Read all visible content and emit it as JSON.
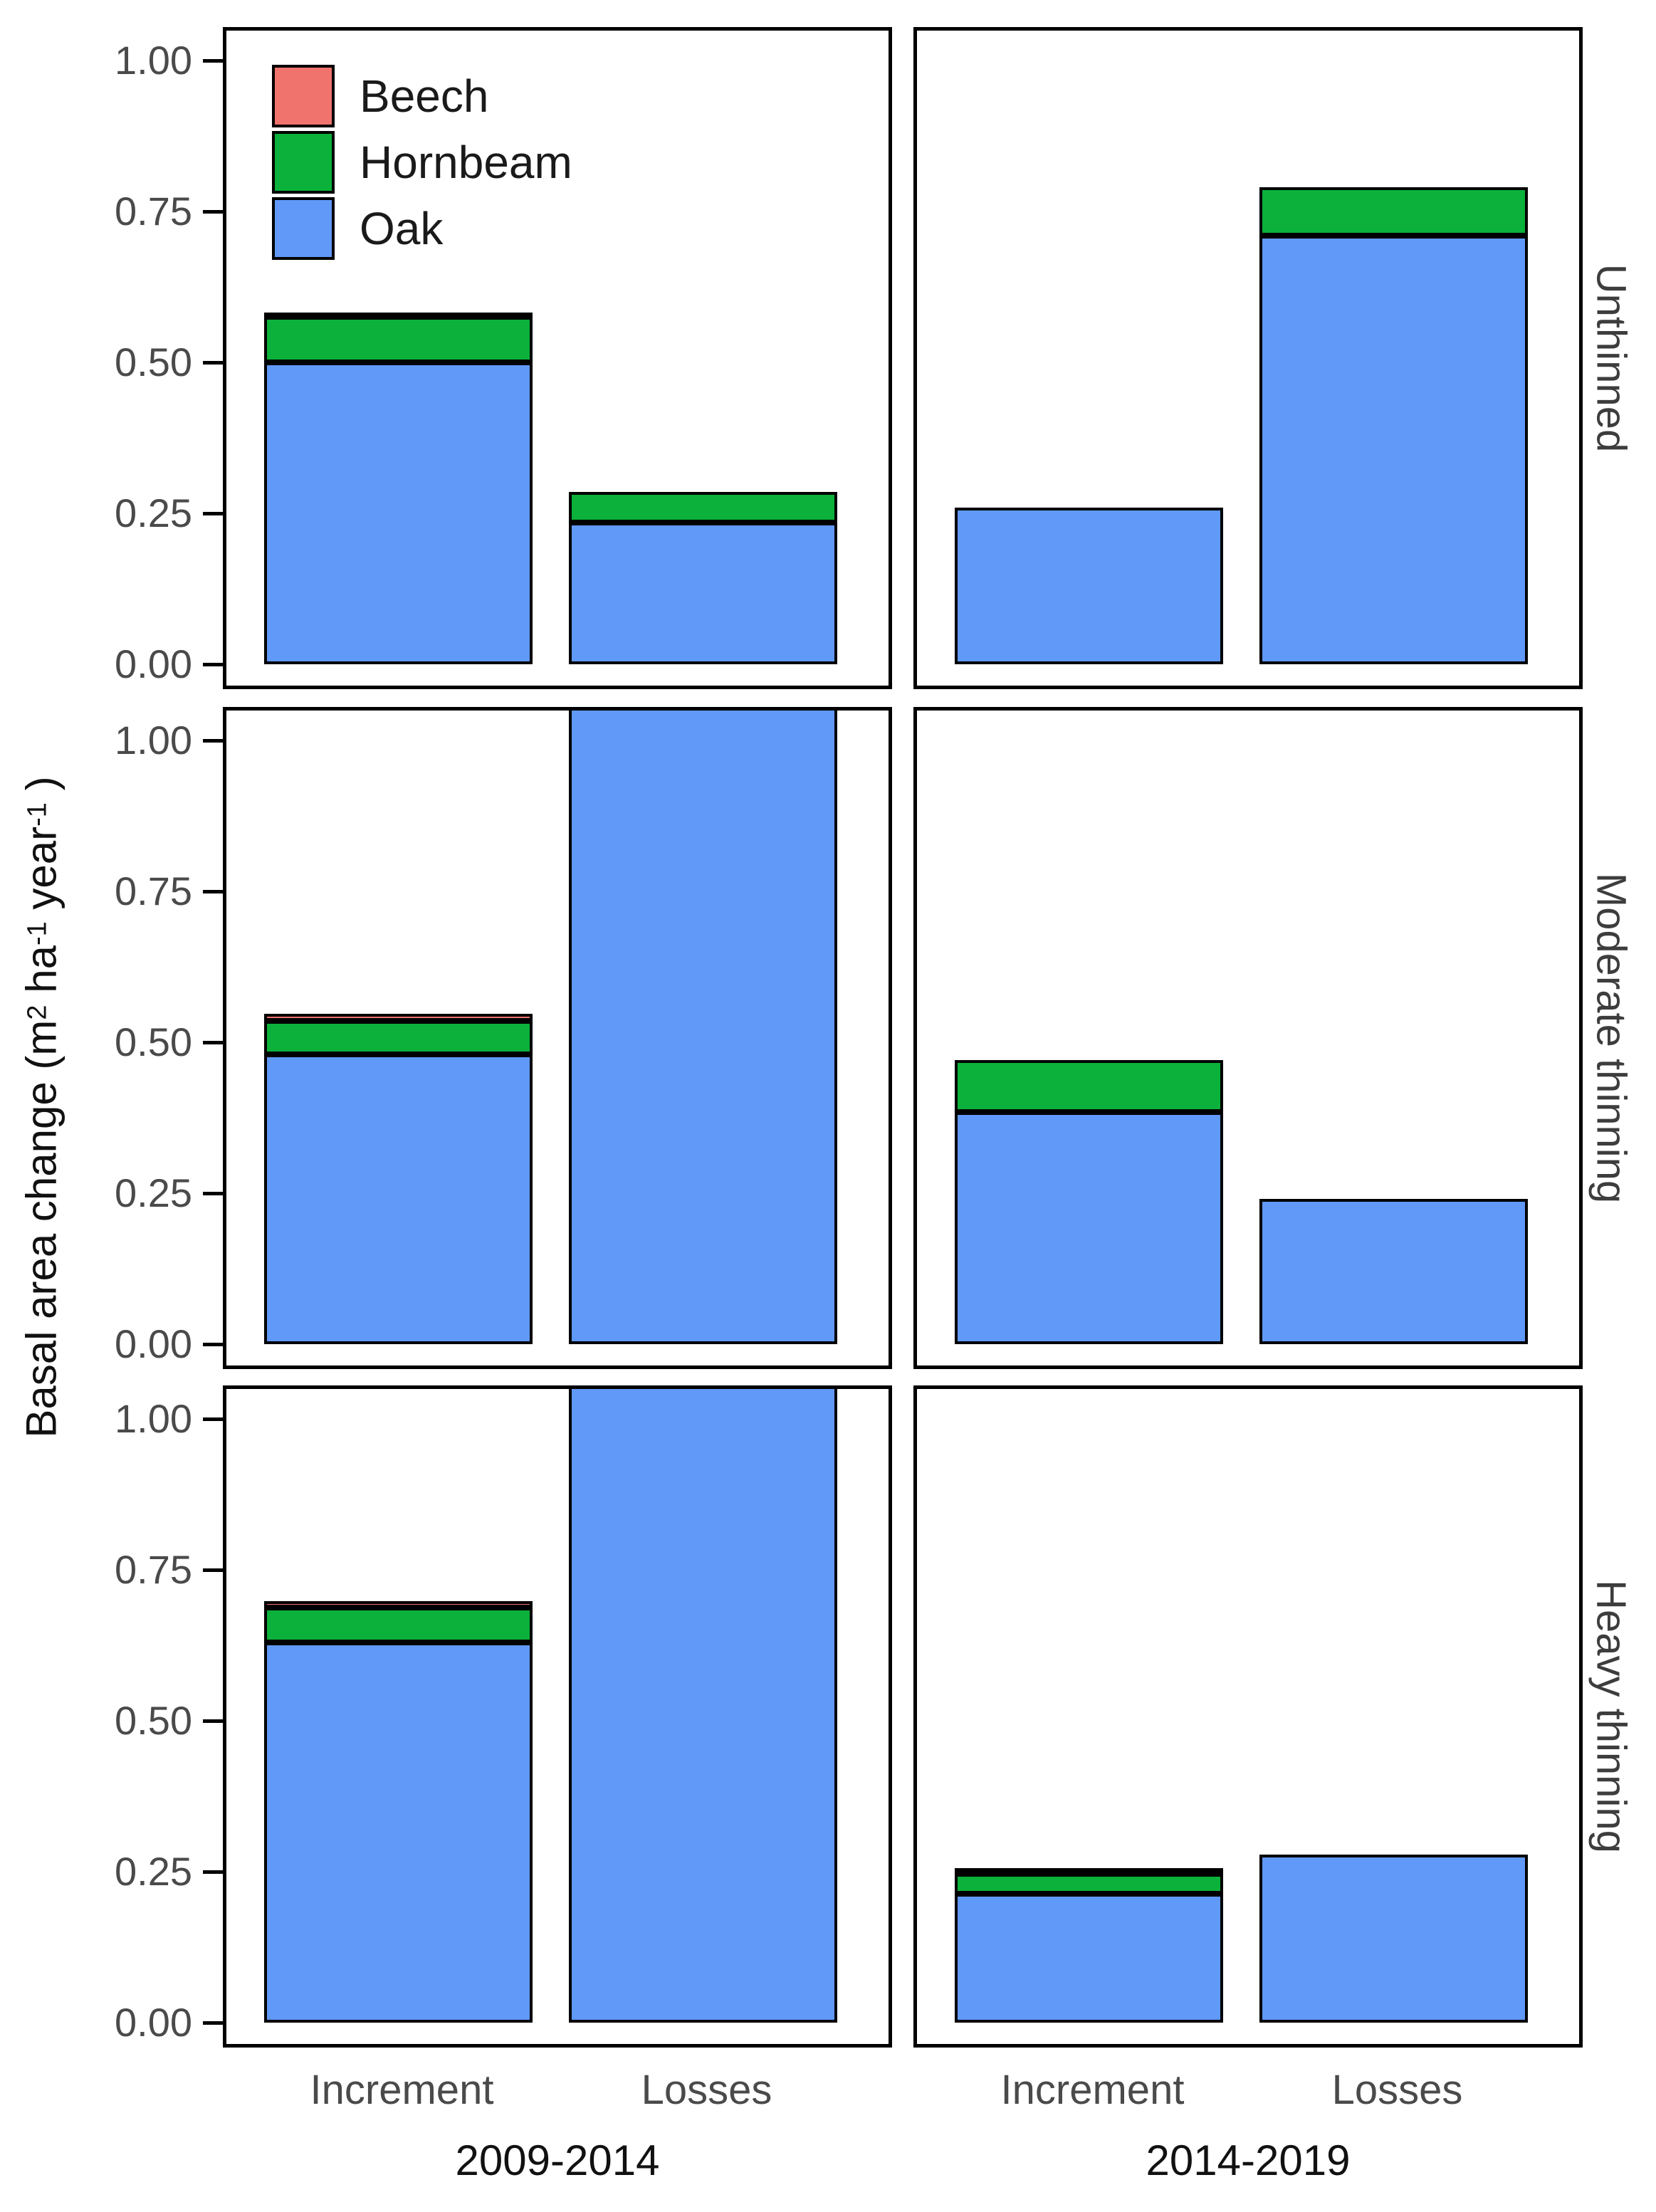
{
  "chart_data": {
    "type": "bar",
    "subtype": "stacked-faceted",
    "title": "",
    "y_axis": {
      "label": "Basal area change (m2 ha-1 year-1)",
      "label_parts": [
        {
          "t": "Basal area change (m"
        },
        {
          "t": "2",
          "sup": true
        },
        {
          "t": " ha",
          "sup": false
        },
        {
          "t": "-1",
          "sup": true
        },
        {
          "t": " year",
          "sup": false
        },
        {
          "t": "-1",
          "sup": true
        },
        {
          "t": " )",
          "sup": false
        }
      ],
      "ticks": [
        {
          "label": "0.00",
          "value": 0.0
        },
        {
          "label": "0.25",
          "value": 0.25
        },
        {
          "label": "0.50",
          "value": 0.5
        },
        {
          "label": "0.75",
          "value": 0.75
        },
        {
          "label": "1.00",
          "value": 1.0
        }
      ],
      "range_shown": [
        0,
        1.05
      ],
      "clip_note": "bars taller than ~1.05 are clipped at the panel top"
    },
    "x_categories": [
      "Increment",
      "Losses"
    ],
    "facet_rows": [
      "Unthinned",
      "Moderate thinning",
      "Heavy thinning"
    ],
    "facet_cols": [
      "2009-2014",
      "2014-2019"
    ],
    "grid": false,
    "legend": {
      "position": "top-left panel, inside",
      "entries": [
        {
          "label": "Beech",
          "color": "#F0736E"
        },
        {
          "label": "Hornbeam",
          "color": "#0BB13A"
        },
        {
          "label": "Oak",
          "color": "#6099F8"
        }
      ]
    },
    "stack_order_bottom_to_top": [
      "Oak",
      "Hornbeam",
      "Beech"
    ],
    "panels": [
      {
        "row": "Unthinned",
        "col": "2009-2014",
        "bars": [
          {
            "category": "Increment",
            "segments": [
              {
                "species": "Oak",
                "value": 0.5
              },
              {
                "species": "Hornbeam",
                "value": 0.075
              },
              {
                "species": "Beech",
                "value": 0.007
              }
            ]
          },
          {
            "category": "Losses",
            "segments": [
              {
                "species": "Oak",
                "value": 0.235
              },
              {
                "species": "Hornbeam",
                "value": 0.05
              }
            ]
          }
        ]
      },
      {
        "row": "Unthinned",
        "col": "2014-2019",
        "bars": [
          {
            "category": "Increment",
            "segments": [
              {
                "species": "Oak",
                "value": 0.26
              }
            ]
          },
          {
            "category": "Losses",
            "segments": [
              {
                "species": "Oak",
                "value": 0.71
              },
              {
                "species": "Hornbeam",
                "value": 0.08
              }
            ]
          }
        ]
      },
      {
        "row": "Moderate thinning",
        "col": "2009-2014",
        "bars": [
          {
            "category": "Increment",
            "segments": [
              {
                "species": "Oak",
                "value": 0.48
              },
              {
                "species": "Hornbeam",
                "value": 0.055
              },
              {
                "species": "Beech",
                "value": 0.012
              }
            ]
          },
          {
            "category": "Losses",
            "segments": [
              {
                "species": "Oak",
                "value": 1.2,
                "clipped": true
              }
            ]
          }
        ]
      },
      {
        "row": "Moderate thinning",
        "col": "2014-2019",
        "bars": [
          {
            "category": "Increment",
            "segments": [
              {
                "species": "Oak",
                "value": 0.385
              },
              {
                "species": "Hornbeam",
                "value": 0.085
              }
            ]
          },
          {
            "category": "Losses",
            "segments": [
              {
                "species": "Oak",
                "value": 0.24
              }
            ]
          }
        ]
      },
      {
        "row": "Heavy thinning",
        "col": "2009-2014",
        "bars": [
          {
            "category": "Increment",
            "segments": [
              {
                "species": "Oak",
                "value": 0.63
              },
              {
                "species": "Hornbeam",
                "value": 0.057
              },
              {
                "species": "Beech",
                "value": 0.011
              }
            ]
          },
          {
            "category": "Losses",
            "segments": [
              {
                "species": "Oak",
                "value": 1.2,
                "clipped": true
              }
            ]
          }
        ]
      },
      {
        "row": "Heavy thinning",
        "col": "2014-2019",
        "bars": [
          {
            "category": "Increment",
            "segments": [
              {
                "species": "Oak",
                "value": 0.213
              },
              {
                "species": "Hornbeam",
                "value": 0.033
              },
              {
                "species": "Beech",
                "value": 0.01
              }
            ]
          },
          {
            "category": "Losses",
            "segments": [
              {
                "species": "Oak",
                "value": 0.278
              }
            ]
          }
        ]
      }
    ]
  }
}
